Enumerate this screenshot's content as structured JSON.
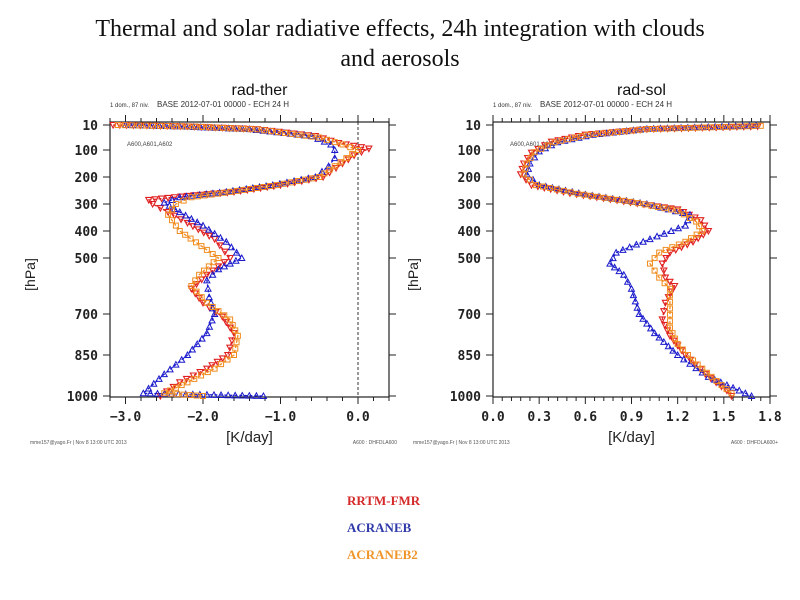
{
  "page": {
    "title_line1": "Thermal and solar radiative effects, 24h integration with clouds",
    "title_line2": "and aerosols"
  },
  "legend": {
    "items": [
      {
        "label": "RRTM-FMR",
        "color": "#d42a2a"
      },
      {
        "label": "ACRANEB",
        "color": "#2f3aa8"
      },
      {
        "label": "ACRANEB2",
        "color": "#f0952a"
      }
    ]
  },
  "chart_data": [
    {
      "type": "line",
      "title": "rad-ther",
      "subtitle_left": "1 dom., 87 niv.",
      "subtitle_center": "BASE 2012-07-01 00000 - ECH 24 H",
      "inner_label": "A600,A601,A602",
      "footer_left": "mme157@yago.Fr | Nov 8 13:00 UTC 2013",
      "footer_right": "A600 : DHFDLA600",
      "xlabel": "[K/day]",
      "ylabel": "[hPa]",
      "xlim": [
        -3.2,
        0.4
      ],
      "xticks": [
        -3.0,
        -2.0,
        -1.0,
        0.0
      ],
      "xtick_labels": [
        "−3.0",
        "−2.0",
        "−1.0",
        "0.0"
      ],
      "yticks": [
        10,
        100,
        200,
        300,
        400,
        500,
        700,
        850,
        1000
      ],
      "ytick_labels": [
        "10",
        "100",
        "200",
        "300",
        "400",
        "500",
        "700",
        "850",
        "1000"
      ],
      "y_reversed": true,
      "zero_line": 0.0,
      "series": [
        {
          "name": "RRTM-FMR",
          "color": "#e02020",
          "marker": "triangle-down",
          "points": [
            [
              -3.16,
              10
            ],
            [
              -2.2,
              15
            ],
            [
              -1.3,
              25
            ],
            [
              -0.55,
              50
            ],
            [
              -0.25,
              75
            ],
            [
              0.14,
              95
            ],
            [
              -0.05,
              120
            ],
            [
              -0.2,
              150
            ],
            [
              -0.45,
              200
            ],
            [
              -1.0,
              230
            ],
            [
              -1.6,
              255
            ],
            [
              -2.2,
              270
            ],
            [
              -2.7,
              285
            ],
            [
              -2.65,
              300
            ],
            [
              -2.45,
              330
            ],
            [
              -2.2,
              370
            ],
            [
              -1.85,
              430
            ],
            [
              -1.65,
              500
            ],
            [
              -1.95,
              560
            ],
            [
              -2.15,
              610
            ],
            [
              -2.0,
              660
            ],
            [
              -1.75,
              710
            ],
            [
              -1.6,
              770
            ],
            [
              -1.68,
              850
            ],
            [
              -1.95,
              900
            ],
            [
              -2.3,
              950
            ],
            [
              -2.55,
              1000
            ]
          ]
        },
        {
          "name": "ACRANEB",
          "color": "#1a1acc",
          "marker": "triangle-up",
          "points": [
            [
              -3.0,
              10
            ],
            [
              -2.3,
              15
            ],
            [
              -1.4,
              25
            ],
            [
              -0.6,
              50
            ],
            [
              -0.35,
              80
            ],
            [
              -0.3,
              100
            ],
            [
              -0.3,
              130
            ],
            [
              -0.38,
              160
            ],
            [
              -0.55,
              200
            ],
            [
              -1.1,
              230
            ],
            [
              -1.7,
              255
            ],
            [
              -2.3,
              275
            ],
            [
              -2.5,
              295
            ],
            [
              -2.3,
              330
            ],
            [
              -2.0,
              380
            ],
            [
              -1.7,
              440
            ],
            [
              -1.5,
              500
            ],
            [
              -1.8,
              540
            ],
            [
              -1.95,
              580
            ],
            [
              -1.92,
              640
            ],
            [
              -1.85,
              700
            ],
            [
              -1.95,
              770
            ],
            [
              -2.2,
              850
            ],
            [
              -2.5,
              920
            ],
            [
              -2.77,
              990
            ],
            [
              -1.22,
              1000
            ]
          ]
        },
        {
          "name": "ACRANEB2",
          "color": "#f08c1e",
          "marker": "square",
          "points": [
            [
              -3.1,
              10
            ],
            [
              -2.1,
              16
            ],
            [
              -1.3,
              26
            ],
            [
              -0.5,
              55
            ],
            [
              -0.2,
              80
            ],
            [
              0.0,
              100
            ],
            [
              -0.15,
              130
            ],
            [
              -0.3,
              160
            ],
            [
              -0.5,
              200
            ],
            [
              -1.05,
              230
            ],
            [
              -1.65,
              255
            ],
            [
              -2.15,
              275
            ],
            [
              -2.35,
              300
            ],
            [
              -2.45,
              340
            ],
            [
              -2.3,
              400
            ],
            [
              -1.95,
              470
            ],
            [
              -1.8,
              500
            ],
            [
              -2.05,
              560
            ],
            [
              -2.15,
              600
            ],
            [
              -1.95,
              660
            ],
            [
              -1.65,
              720
            ],
            [
              -1.55,
              780
            ],
            [
              -1.6,
              850
            ],
            [
              -1.85,
              900
            ],
            [
              -2.2,
              950
            ],
            [
              -2.5,
              990
            ],
            [
              -2.0,
              1000
            ]
          ]
        }
      ]
    },
    {
      "type": "line",
      "title": "rad-sol",
      "subtitle_left": "1 dom., 87 niv.",
      "subtitle_center": "BASE 2012-07-01 00000 - ECH 24 H",
      "inner_label": "A600,A601,A602",
      "footer_left": "mme157@yago.Fr | Nov 8 13:00 UTC 2013",
      "footer_right": "A600 : DHFDLA600+",
      "xlabel": "[K/day]",
      "ylabel": "[hPa]",
      "xlim": [
        0.0,
        1.8
      ],
      "xticks": [
        0.0,
        0.3,
        0.6,
        0.9,
        1.2,
        1.5,
        1.8
      ],
      "xtick_labels": [
        "0.0",
        "0.3",
        "0.6",
        "0.9",
        "1.2",
        "1.5",
        "1.8"
      ],
      "yticks": [
        10,
        100,
        200,
        300,
        400,
        500,
        700,
        850,
        1000
      ],
      "ytick_labels": [
        "10",
        "100",
        "200",
        "300",
        "400",
        "500",
        "700",
        "850",
        "1000"
      ],
      "y_reversed": true,
      "series": [
        {
          "name": "RRTM-FMR",
          "color": "#e02020",
          "marker": "triangle-down",
          "points": [
            [
              1.72,
              15
            ],
            [
              1.0,
              25
            ],
            [
              0.6,
              45
            ],
            [
              0.38,
              70
            ],
            [
              0.25,
              110
            ],
            [
              0.2,
              150
            ],
            [
              0.18,
              190
            ],
            [
              0.25,
              230
            ],
            [
              0.5,
              260
            ],
            [
              0.85,
              290
            ],
            [
              1.2,
              320
            ],
            [
              1.35,
              360
            ],
            [
              1.4,
              400
            ],
            [
              1.3,
              440
            ],
            [
              1.15,
              480
            ],
            [
              1.1,
              520
            ],
            [
              1.12,
              570
            ],
            [
              1.18,
              600
            ],
            [
              1.12,
              660
            ],
            [
              1.1,
              720
            ],
            [
              1.15,
              780
            ],
            [
              1.25,
              850
            ],
            [
              1.38,
              920
            ],
            [
              1.52,
              980
            ],
            [
              1.55,
              1000
            ]
          ]
        },
        {
          "name": "ACRANEB",
          "color": "#1a1acc",
          "marker": "triangle-up",
          "points": [
            [
              1.71,
              12
            ],
            [
              1.0,
              24
            ],
            [
              0.65,
              45
            ],
            [
              0.42,
              72
            ],
            [
              0.3,
              105
            ],
            [
              0.24,
              150
            ],
            [
              0.22,
              190
            ],
            [
              0.3,
              230
            ],
            [
              0.6,
              265
            ],
            [
              1.0,
              300
            ],
            [
              1.28,
              340
            ],
            [
              1.25,
              380
            ],
            [
              1.02,
              430
            ],
            [
              0.8,
              480
            ],
            [
              0.76,
              520
            ],
            [
              0.85,
              560
            ],
            [
              0.9,
              610
            ],
            [
              0.95,
              700
            ],
            [
              1.05,
              770
            ],
            [
              1.2,
              850
            ],
            [
              1.4,
              930
            ],
            [
              1.68,
              1000
            ]
          ]
        },
        {
          "name": "ACRANEB2",
          "color": "#f08c1e",
          "marker": "square",
          "points": [
            [
              1.74,
              13
            ],
            [
              1.0,
              25
            ],
            [
              0.62,
              45
            ],
            [
              0.4,
              72
            ],
            [
              0.27,
              108
            ],
            [
              0.22,
              150
            ],
            [
              0.2,
              190
            ],
            [
              0.28,
              230
            ],
            [
              0.55,
              262
            ],
            [
              0.9,
              292
            ],
            [
              1.2,
              325
            ],
            [
              1.32,
              365
            ],
            [
              1.36,
              400
            ],
            [
              1.25,
              440
            ],
            [
              1.08,
              480
            ],
            [
              1.02,
              520
            ],
            [
              1.08,
              570
            ],
            [
              1.15,
              610
            ],
            [
              1.15,
              680
            ],
            [
              1.15,
              750
            ],
            [
              1.2,
              810
            ],
            [
              1.3,
              870
            ],
            [
              1.42,
              930
            ],
            [
              1.55,
              990
            ]
          ]
        }
      ]
    }
  ]
}
